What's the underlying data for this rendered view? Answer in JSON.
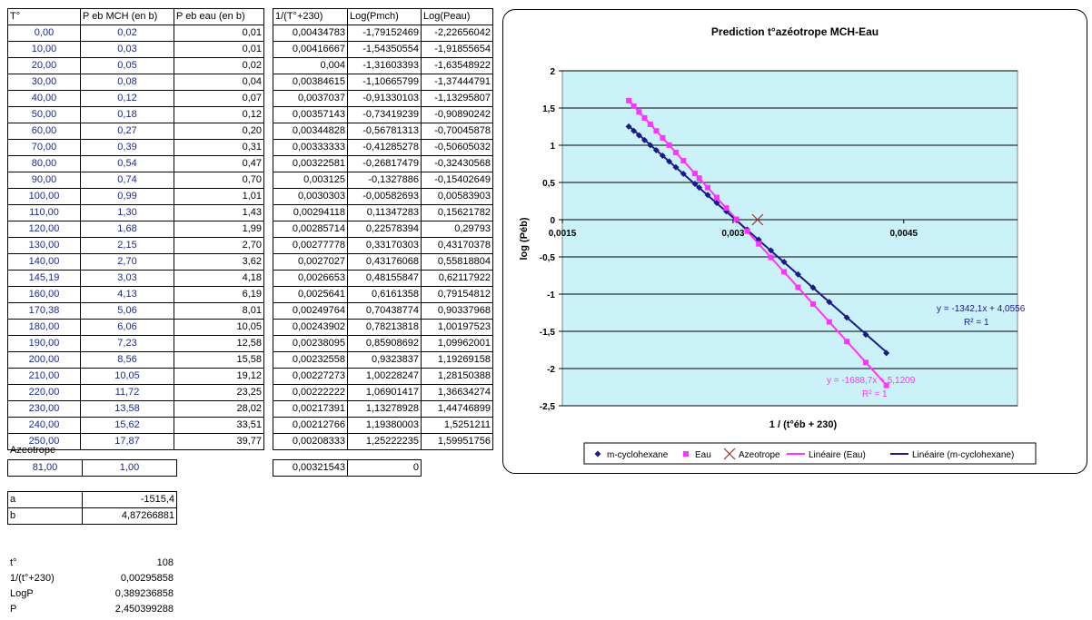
{
  "main_table": {
    "headers": [
      "T°",
      "P eb MCH (en b)",
      "P eb eau (en b)"
    ],
    "rows": [
      [
        "0,00",
        "0,02",
        "0,01"
      ],
      [
        "10,00",
        "0,03",
        "0,01"
      ],
      [
        "20,00",
        "0,05",
        "0,02"
      ],
      [
        "30,00",
        "0,08",
        "0,04"
      ],
      [
        "40,00",
        "0,12",
        "0,07"
      ],
      [
        "50,00",
        "0,18",
        "0,12"
      ],
      [
        "60,00",
        "0,27",
        "0,20"
      ],
      [
        "70,00",
        "0,39",
        "0,31"
      ],
      [
        "80,00",
        "0,54",
        "0,47"
      ],
      [
        "90,00",
        "0,74",
        "0,70"
      ],
      [
        "100,00",
        "0,99",
        "1,01"
      ],
      [
        "110,00",
        "1,30",
        "1,43"
      ],
      [
        "120,00",
        "1,68",
        "1,99"
      ],
      [
        "130,00",
        "2,15",
        "2,70"
      ],
      [
        "140,00",
        "2,70",
        "3,62"
      ],
      [
        "145,19",
        "3,03",
        "4,18"
      ],
      [
        "160,00",
        "4,13",
        "6,19"
      ],
      [
        "170,38",
        "5,06",
        "8,01"
      ],
      [
        "180,00",
        "6,06",
        "10,05"
      ],
      [
        "190,00",
        "7,23",
        "12,58"
      ],
      [
        "200,00",
        "8,56",
        "15,58"
      ],
      [
        "210,00",
        "10,05",
        "19,12"
      ],
      [
        "220,00",
        "11,72",
        "23,25"
      ],
      [
        "230,00",
        "13,58",
        "28,02"
      ],
      [
        "240,00",
        "15,62",
        "33,51"
      ],
      [
        "250,00",
        "17,87",
        "39,77"
      ]
    ]
  },
  "log_table": {
    "headers": [
      "1/(T°+230)",
      "Log(Pmch)",
      "Log(Peau)"
    ],
    "rows": [
      [
        "0,00434783",
        "-1,79152469",
        "-2,22656042"
      ],
      [
        "0,00416667",
        "-1,54350554",
        "-1,91855654"
      ],
      [
        "0,004",
        "-1,31603393",
        "-1,63548922"
      ],
      [
        "0,00384615",
        "-1,10665799",
        "-1,37444791"
      ],
      [
        "0,0037037",
        "-0,91330103",
        "-1,13295807"
      ],
      [
        "0,00357143",
        "-0,73419239",
        "-0,90890242"
      ],
      [
        "0,00344828",
        "-0,56781313",
        "-0,70045878"
      ],
      [
        "0,00333333",
        "-0,41285278",
        "-0,50605032"
      ],
      [
        "0,00322581",
        "-0,26817479",
        "-0,32430568"
      ],
      [
        "0,003125",
        "-0,1327886",
        "-0,15402649"
      ],
      [
        "0,0030303",
        "-0,00582693",
        "0,00583903"
      ],
      [
        "0,00294118",
        "0,11347283",
        "0,15621782"
      ],
      [
        "0,00285714",
        "0,22578394",
        "0,29793"
      ],
      [
        "0,00277778",
        "0,33170303",
        "0,43170378"
      ],
      [
        "0,0027027",
        "0,43176068",
        "0,55818804"
      ],
      [
        "0,0026653",
        "0,48155847",
        "0,62117922"
      ],
      [
        "0,0025641",
        "0,6161358",
        "0,79154812"
      ],
      [
        "0,00249764",
        "0,70438774",
        "0,90337968"
      ],
      [
        "0,00243902",
        "0,78213818",
        "1,00197523"
      ],
      [
        "0,00238095",
        "0,85908692",
        "1,09962001"
      ],
      [
        "0,00232558",
        "0,9323837",
        "1,19269158"
      ],
      [
        "0,00227273",
        "1,00228247",
        "1,28150388"
      ],
      [
        "0,00222222",
        "1,06901417",
        "1,36634274"
      ],
      [
        "0,00217391",
        "1,13278928",
        "1,44746899"
      ],
      [
        "0,00212766",
        "1,19380003",
        "1,5251211"
      ],
      [
        "0,00208333",
        "1,25222235",
        "1,59951756"
      ]
    ]
  },
  "azeotrope": {
    "label": "Azeotrope",
    "t": "81,00",
    "p": "1,00",
    "inv": "0,00321543",
    "log": "0"
  },
  "coefficients": {
    "a_label": "a",
    "a_value": "-1515,4",
    "b_label": "b",
    "b_value": "4,87266881"
  },
  "calc": {
    "t_label": "t°",
    "t_value": "108",
    "inv_label": "1/(t°+230)",
    "inv_value": "0,00295858",
    "logp_label": "LogP",
    "logp_value": "0,389236858",
    "p_label": "P",
    "p_value": "2,450399288"
  },
  "chart_data": {
    "type": "scatter",
    "title": "Prediction t°azéotrope MCH-Eau",
    "xlabel": "1 / (t°éb + 230)",
    "ylabel": "log (Péb)",
    "xlim": [
      0.0015,
      0.0055
    ],
    "ylim": [
      -2.5,
      2
    ],
    "x_tick_labels": [
      "0,0015",
      "0,003",
      "0,0045"
    ],
    "x_ticks": [
      0.0015,
      0.003,
      0.0045
    ],
    "y_tick_labels": [
      "2",
      "1,5",
      "1",
      "0,5",
      "0",
      "-0,5",
      "-1",
      "-1,5",
      "-2",
      "-2,5"
    ],
    "y_ticks": [
      2,
      1.5,
      1,
      0.5,
      0,
      -0.5,
      -1,
      -1.5,
      -2,
      -2.5
    ],
    "plot_background": "#ccf2f9",
    "grid": "horizontal",
    "legend_position": "bottom",
    "series": [
      {
        "name": "m-cyclohexane",
        "color": "#1a1a8c",
        "marker": "diamond",
        "x": [
          0.00434783,
          0.00416667,
          0.004,
          0.00384615,
          0.0037037,
          0.00357143,
          0.00344828,
          0.00333333,
          0.00322581,
          0.003125,
          0.0030303,
          0.00294118,
          0.00285714,
          0.00277778,
          0.0027027,
          0.0026653,
          0.0025641,
          0.00249764,
          0.00243902,
          0.00238095,
          0.00232558,
          0.00227273,
          0.00222222,
          0.00217391,
          0.00212766,
          0.00208333
        ],
        "y": [
          -1.79152469,
          -1.54350554,
          -1.31603393,
          -1.10665799,
          -0.91330103,
          -0.73419239,
          -0.56781313,
          -0.41285278,
          -0.26817479,
          -0.1327886,
          -0.00582693,
          0.11347283,
          0.22578394,
          0.33170303,
          0.43176068,
          0.48155847,
          0.6161358,
          0.70438774,
          0.78213818,
          0.85908692,
          0.9323837,
          1.00228247,
          1.06901417,
          1.13278928,
          1.19380003,
          1.25222235
        ]
      },
      {
        "name": "Eau",
        "color": "#ff33ff",
        "marker": "square",
        "x": [
          0.00434783,
          0.00416667,
          0.004,
          0.00384615,
          0.0037037,
          0.00357143,
          0.00344828,
          0.00333333,
          0.00322581,
          0.003125,
          0.0030303,
          0.00294118,
          0.00285714,
          0.00277778,
          0.0027027,
          0.0026653,
          0.0025641,
          0.00249764,
          0.00243902,
          0.00238095,
          0.00232558,
          0.00227273,
          0.00222222,
          0.00217391,
          0.00212766,
          0.00208333
        ],
        "y": [
          -2.22656042,
          -1.91855654,
          -1.63548922,
          -1.37444791,
          -1.13295807,
          -0.90890242,
          -0.70045878,
          -0.50605032,
          -0.32430568,
          -0.15402649,
          0.00583903,
          0.15621782,
          0.29793,
          0.43170378,
          0.55818804,
          0.62117922,
          0.79154812,
          0.90337968,
          1.00197523,
          1.09962001,
          1.19269158,
          1.28150388,
          1.36634274,
          1.44746899,
          1.5251211,
          1.59951756
        ]
      },
      {
        "name": "Azeotrope",
        "color": "#993333",
        "marker": "x",
        "x": [
          0.00321543
        ],
        "y": [
          0
        ]
      }
    ],
    "trendlines": [
      {
        "name": "Linéaire (Eau)",
        "color": "#ff33ff",
        "slope": -1688.7,
        "intercept": 5.1209,
        "equation": "y = -1688,7x + 5,1209",
        "r2": "R² = 1"
      },
      {
        "name": "Linéaire (m-cyclohexane)",
        "color": "#1a1a8c",
        "slope": -1342.1,
        "intercept": 4.0556,
        "equation": "y = -1342,1x + 4,0556",
        "r2": "R² = 1"
      }
    ],
    "legend": [
      "m-cyclohexane",
      "Eau",
      "Azeotrope",
      "Linéaire (Eau)",
      "Linéaire (m-cyclohexane)"
    ]
  }
}
